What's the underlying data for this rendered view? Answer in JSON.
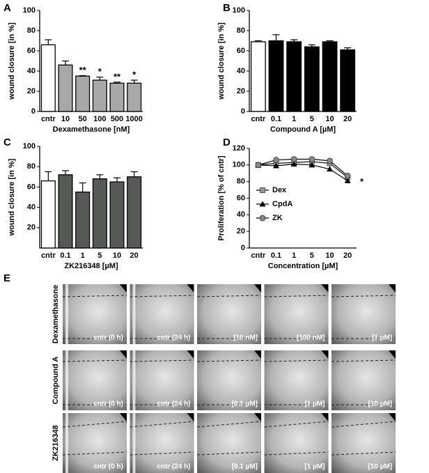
{
  "chart_data": [
    {
      "type": "bar",
      "panel": "A",
      "xlabel": "Dexamethasone [nM]",
      "ylabel": "wound closure [in %]",
      "categories": [
        "cntr",
        "10",
        "50",
        "100",
        "500",
        "1000"
      ],
      "values": [
        66,
        46,
        35,
        31,
        28,
        28
      ],
      "errors": [
        5,
        4,
        0.5,
        3,
        1,
        3
      ],
      "colors": [
        "#ffffff",
        "#a8a8a8",
        "#a8a8a8",
        "#a8a8a8",
        "#a8a8a8",
        "#a8a8a8"
      ],
      "annotations": [
        null,
        null,
        "**",
        "*",
        "**",
        "*"
      ],
      "ylim": [
        0,
        100
      ],
      "yticks": [
        0,
        20,
        40,
        60,
        80,
        100
      ]
    },
    {
      "type": "bar",
      "panel": "B",
      "xlabel": "Compound A [µM]",
      "ylabel": "wound closure [in %]",
      "categories": [
        "cntr",
        "0.1",
        "1",
        "5",
        "10",
        "20"
      ],
      "values": [
        69,
        70,
        69,
        64,
        69,
        61
      ],
      "errors": [
        1,
        6,
        2,
        2,
        1,
        2
      ],
      "colors": [
        "#ffffff",
        "#000000",
        "#000000",
        "#000000",
        "#000000",
        "#000000"
      ],
      "ylim": [
        0,
        100
      ],
      "yticks": [
        0,
        20,
        40,
        60,
        80,
        100
      ]
    },
    {
      "type": "bar",
      "panel": "C",
      "xlabel": "ZK216348 [µM]",
      "ylabel": "wound closure [in %]",
      "categories": [
        "cntr",
        "0.1",
        "1",
        "5",
        "10",
        "20"
      ],
      "values": [
        66,
        72,
        55,
        68,
        65,
        70
      ],
      "errors": [
        9,
        4,
        9,
        4,
        4,
        5
      ],
      "colors": [
        "#ffffff",
        "#555a55",
        "#555a55",
        "#555a55",
        "#555a55",
        "#555a55"
      ],
      "ylim": [
        0,
        100
      ],
      "yticks": [
        20,
        40,
        60,
        80,
        100
      ]
    },
    {
      "type": "line",
      "panel": "D",
      "xlabel": "Concentration [µM]",
      "ylabel": "Proliferation [% of cntr]",
      "categories": [
        "cntr",
        "0.1",
        "1",
        "5",
        "10",
        "20"
      ],
      "series": [
        {
          "name": "Dex",
          "color": "#999999",
          "marker": "square",
          "values": [
            100,
            102,
            103,
            104,
            102,
            85
          ]
        },
        {
          "name": "CpdA",
          "color": "#000000",
          "marker": "triangle",
          "values": [
            100,
            99,
            101,
            100,
            95,
            81
          ]
        },
        {
          "name": "ZK",
          "color": "#888888",
          "marker": "circle",
          "values": [
            100,
            106,
            107,
            107,
            105,
            87
          ]
        }
      ],
      "annotation": "*",
      "ylim": [
        0,
        120
      ],
      "yticks": [
        0,
        20,
        40,
        60,
        80,
        100,
        120
      ]
    }
  ],
  "panel_e": {
    "label": "E",
    "rows": [
      {
        "label": "Dexamethasone",
        "images": [
          "cntr (0 h)",
          "cntr (24 h)",
          "[10 nM]",
          "[100 nM]",
          "[1 µM]"
        ]
      },
      {
        "label": "Compound A",
        "images": [
          "cntr (0 h)",
          "cntr (24 h)",
          "[0.1 µM]",
          "[1 µM]",
          "[10 µM]"
        ]
      },
      {
        "label": "ZK216348",
        "images": [
          "cntr (0 h)",
          "cntr (24 h)",
          "[0.1 µM]",
          "[1 µM]",
          "[10 µM]"
        ]
      }
    ]
  }
}
